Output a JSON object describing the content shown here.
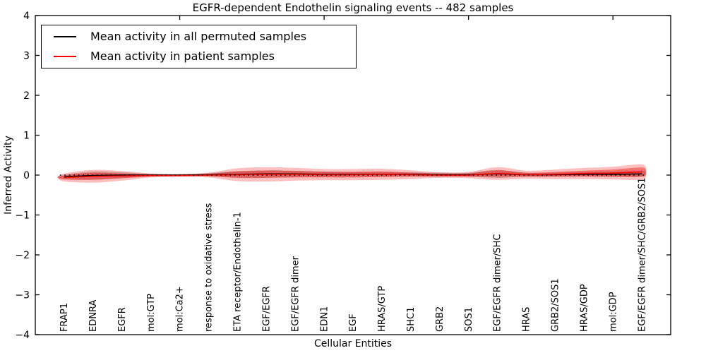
{
  "figure": {
    "title": "EGFR-dependent Endothelin signaling events -- 482 samples"
  },
  "chart_data": {
    "type": "violin",
    "title": "EGFR-dependent Endothelin signaling events -- 482 samples",
    "xlabel": "Cellular Entities",
    "ylabel": "Inferred Activity",
    "ylim": [
      -4,
      4
    ],
    "xlim": [
      0,
      22
    ],
    "grid": false,
    "legend_position": "upper left",
    "ytick_values": [
      4,
      3,
      2,
      1,
      0,
      -1,
      -2,
      -3,
      -4
    ],
    "ytick_labels": [
      "4",
      "3",
      "2",
      "1",
      "0",
      "−1",
      "−2",
      "−3",
      "−4"
    ],
    "xtick_values": [
      5,
      10,
      15,
      20
    ],
    "legend": [
      {
        "label": "Mean activity in all permuted samples",
        "color": "#000000"
      },
      {
        "label": "Mean activity in patient samples",
        "color": "#ff0000"
      }
    ],
    "entities": [
      "FRAP1",
      "EDNRA",
      "EGFR",
      "mol:GTP",
      "mol:Ca2+",
      "response to oxidative stress",
      "ETA receptor/Endothelin-1",
      "EGF/EGFR",
      "EGF/EGFR dimer",
      "EDN1",
      "EGF",
      "HRAS/GTP",
      "SHC1",
      "GRB2",
      "SOS1",
      "EGF/EGFR dimer/SHC",
      "HRAS",
      "GRB2/SOS1",
      "HRAS/GDP",
      "mol:GDP",
      "EGF/EGFR dimer/SHC/GRB2/SOS1"
    ],
    "positions": [
      1,
      2,
      3,
      4,
      5,
      6,
      7,
      8,
      9,
      10,
      11,
      12,
      13,
      14,
      15,
      16,
      17,
      18,
      19,
      20,
      21
    ],
    "series": [
      {
        "name": "permuted_mean",
        "color": "#000000",
        "values": [
          -0.04,
          -0.01,
          0.0,
          0.0,
          0.0,
          0.01,
          0.02,
          0.03,
          0.03,
          0.02,
          0.02,
          0.02,
          0.02,
          0.01,
          0.01,
          0.03,
          0.01,
          0.01,
          0.02,
          0.02,
          0.03
        ]
      },
      {
        "name": "patient_mean",
        "color": "#ff0000",
        "values": [
          -0.06,
          -0.03,
          -0.02,
          -0.01,
          -0.01,
          0.0,
          0.01,
          0.02,
          0.02,
          0.01,
          0.01,
          0.02,
          0.01,
          0.0,
          0.0,
          0.04,
          0.01,
          0.02,
          0.04,
          0.05,
          0.08
        ]
      }
    ],
    "bands": {
      "zero_line": 0,
      "gray_halfwidth": [
        0.05,
        0.1,
        0.07,
        0.03,
        0.025,
        0.04,
        0.08,
        0.09,
        0.08,
        0.07,
        0.06,
        0.06,
        0.05,
        0.05,
        0.05,
        0.1,
        0.05,
        0.05,
        0.06,
        0.07,
        0.08
      ],
      "red_outer_halfwidth": [
        0.1,
        0.16,
        0.12,
        0.05,
        0.035,
        0.06,
        0.16,
        0.18,
        0.16,
        0.14,
        0.14,
        0.14,
        0.11,
        0.07,
        0.08,
        0.16,
        0.1,
        0.12,
        0.14,
        0.16,
        0.19
      ],
      "red_inner_halfwidth": [
        0.05,
        0.09,
        0.06,
        0.03,
        0.02,
        0.03,
        0.08,
        0.09,
        0.08,
        0.07,
        0.07,
        0.07,
        0.05,
        0.035,
        0.04,
        0.08,
        0.05,
        0.06,
        0.07,
        0.09,
        0.11
      ],
      "gray_color": "rgba(0,0,0,0.22)",
      "red_outer_color": "rgba(255,0,0,0.25)",
      "red_inner_color": "rgba(230,20,20,0.45)"
    }
  }
}
